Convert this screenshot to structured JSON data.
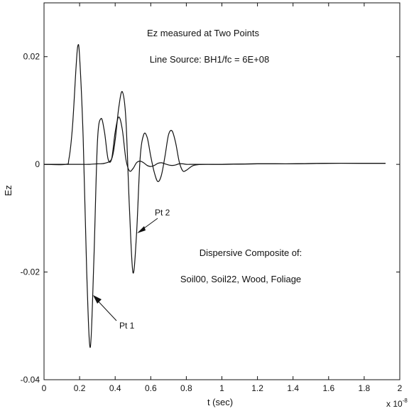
{
  "chart_data": {
    "type": "line",
    "title": "",
    "xlabel": "t (sec)",
    "ylabel": "Ez",
    "x_exponent_label": "x 10",
    "x_exponent_power": "-8",
    "xlim": [
      0,
      2
    ],
    "ylim": [
      -0.04,
      0.03
    ],
    "x_ticks": [
      0,
      0.2,
      0.4,
      0.6,
      0.8,
      1,
      1.2,
      1.4,
      1.6,
      1.8,
      2
    ],
    "x_tick_labels": [
      "0",
      "0.2",
      "0.4",
      "0.6",
      "0.8",
      "1",
      "1.2",
      "1.4",
      "1.6",
      "1.8",
      "2"
    ],
    "y_ticks": [
      -0.04,
      -0.02,
      0,
      0.02
    ],
    "y_tick_labels": [
      "-0.04",
      "-0.02",
      "0",
      "0.02"
    ],
    "grid": false,
    "legend": "none",
    "annotations": [
      "Ez measured at Two Points",
      "Line Source: BH1/fc = 6E+08",
      "Dispersive Composite of:",
      "Soil00, Soil22, Wood, Foliage",
      "Pt 2",
      "Pt 1"
    ],
    "series": [
      {
        "label": "Pt 1",
        "x": [
          0,
          0.12,
          0.14,
          0.16,
          0.18,
          0.19,
          0.2,
          0.22,
          0.24,
          0.26,
          0.28,
          0.3,
          0.32,
          0.34,
          0.36,
          0.38,
          0.4,
          0.42,
          0.44,
          0.46,
          0.48,
          0.5,
          0.52,
          0.54,
          0.56,
          0.58,
          0.6,
          0.62,
          0.64,
          0.66,
          0.68,
          0.7,
          0.72,
          0.74,
          0.76,
          0.78,
          0.8,
          0.82,
          0.84,
          0.9,
          1.0,
          1.2,
          1.4,
          1.6,
          1.8,
          1.92
        ],
        "y": [
          0,
          0,
          0.001,
          0.007,
          0.018,
          0.022,
          0.02,
          0.005,
          -0.02,
          -0.034,
          -0.018,
          0.004,
          0.0085,
          0.006,
          0.001,
          0.001,
          0.006,
          0.0088,
          0.0065,
          0.001,
          -0.0012,
          -0.0008,
          0.0003,
          0.0006,
          0.0003,
          -0.0002,
          -0.0004,
          -0.0002,
          0.0002,
          0.0003,
          0.0001,
          -0.0001,
          -0.0002,
          -0.0001,
          0.0001,
          0.0001,
          0,
          0,
          0,
          0,
          0,
          0.0001,
          0.0001,
          0.0002,
          0.0002,
          0.0002
        ]
      },
      {
        "label": "Pt 2",
        "x": [
          0,
          0.2,
          0.25,
          0.3,
          0.34,
          0.38,
          0.4,
          0.42,
          0.44,
          0.46,
          0.48,
          0.5,
          0.52,
          0.54,
          0.56,
          0.58,
          0.6,
          0.62,
          0.64,
          0.66,
          0.68,
          0.7,
          0.72,
          0.74,
          0.76,
          0.78,
          0.8,
          0.84,
          0.9,
          1.0,
          1.2,
          1.4,
          1.6,
          1.8,
          1.92
        ],
        "y": [
          0,
          0,
          0,
          0.0001,
          0.0002,
          0.001,
          0.0045,
          0.0105,
          0.0135,
          0.0085,
          -0.008,
          -0.0201,
          -0.013,
          0.001,
          0.0055,
          0.005,
          0.0015,
          -0.0015,
          -0.0032,
          -0.002,
          0.0015,
          0.0055,
          0.0062,
          0.004,
          0.0005,
          -0.0012,
          -0.0011,
          -0.0002,
          0,
          0,
          0.0001,
          0.0001,
          0.0002,
          0.0002,
          0.0002
        ]
      }
    ]
  }
}
